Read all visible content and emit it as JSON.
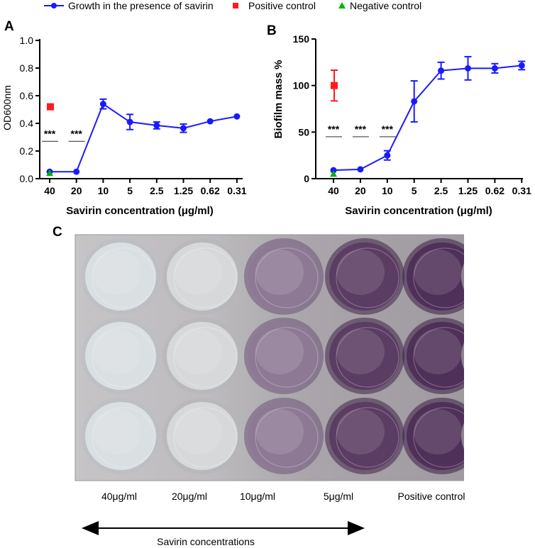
{
  "legend": {
    "growth": "Growth in the presence of savirin",
    "positive": "Positive control",
    "negative": "Negative control"
  },
  "colors": {
    "growth": "#1a1aff",
    "positive": "#ff1a1a",
    "negative": "#00b300"
  },
  "chart_data": [
    {
      "panel": "A",
      "type": "line",
      "categories": [
        "40",
        "20",
        "10",
        "5",
        "2.5",
        "1.25",
        "0.62",
        "0.31"
      ],
      "xlabel": "Savirin concentration (μg/ml)",
      "ylabel": "OD600nm",
      "ylim": [
        0,
        1.0
      ],
      "yticks": [
        "0.0",
        "0.2",
        "0.4",
        "0.6",
        "0.8",
        "1.0"
      ],
      "series": [
        {
          "name": "Growth in the presence of savirin",
          "values": [
            0.05,
            0.05,
            0.54,
            0.41,
            0.385,
            0.365,
            0.415,
            0.45
          ],
          "errors": [
            0.01,
            0.01,
            0.035,
            0.055,
            0.025,
            0.03,
            0.01,
            0.01
          ]
        }
      ],
      "positive_control": {
        "value": 0.52,
        "error": 0.01,
        "at": "40"
      },
      "negative_control": {
        "value": 0.04,
        "at": "40"
      },
      "significance": [
        {
          "at": "40",
          "text": "***",
          "y": 0.27
        },
        {
          "at": "20",
          "text": "***",
          "y": 0.27
        }
      ]
    },
    {
      "panel": "B",
      "type": "line",
      "categories": [
        "40",
        "20",
        "10",
        "5",
        "2.5",
        "1.25",
        "0.62",
        "0.31"
      ],
      "xlabel": "Savirin concentration (μg/ml)",
      "ylabel": "Biofilm mass %",
      "ylim": [
        0,
        150
      ],
      "yticks": [
        "0",
        "50",
        "100",
        "150"
      ],
      "series": [
        {
          "name": "Growth in the presence of savirin",
          "values": [
            9,
            10,
            25,
            83,
            116,
            118.5,
            118.5,
            121.5
          ],
          "errors": [
            1,
            1,
            5,
            22,
            9,
            12.5,
            5,
            4.5
          ]
        }
      ],
      "positive_control": {
        "value": 100,
        "error": 16.5,
        "at": "40"
      },
      "negative_control": {
        "value": 5,
        "at": "40"
      },
      "significance": [
        {
          "at": "40",
          "text": "***",
          "y": 45
        },
        {
          "at": "20",
          "text": "***",
          "y": 45
        },
        {
          "at": "10",
          "text": "***",
          "y": 45
        }
      ]
    }
  ],
  "photo": {
    "panel": "C",
    "columns": [
      {
        "label": "40μg/ml",
        "tint": "#dadfe2",
        "rim": "#b9bec4"
      },
      {
        "label": "20μg/ml",
        "tint": "#d7d8da",
        "rim": "#b5b6ba"
      },
      {
        "label": "10μg/ml",
        "tint": "#8d7994",
        "rim": "#6c5476"
      },
      {
        "label": "5μg/ml",
        "tint": "#5b3c62",
        "rim": "#402347"
      },
      {
        "label": "Positive control",
        "tint": "#4f3058",
        "rim": "#3a1c43"
      }
    ],
    "arrow_label": "Savirin concentrations"
  }
}
